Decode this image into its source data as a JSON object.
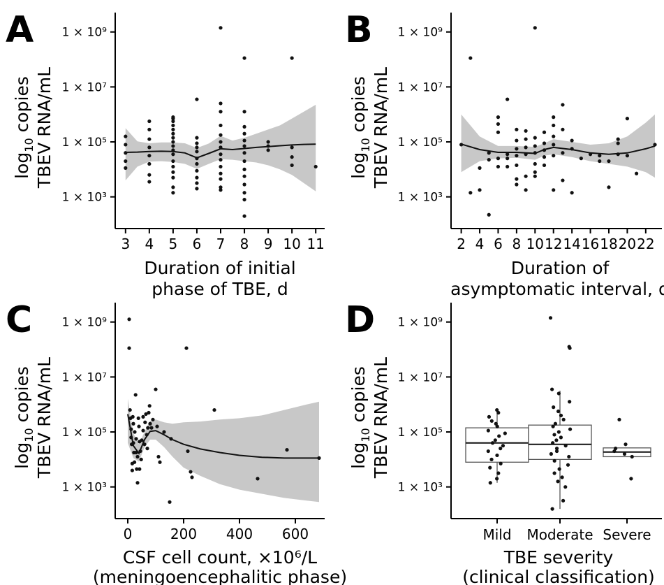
{
  "colors": {
    "points": "#111111",
    "band": "#c8c8c8",
    "line": "#111111",
    "box_stroke": "#555555",
    "background": "#ffffff"
  },
  "ytick_labels": [
    "1 × 10³",
    "1 × 10⁵",
    "1 × 10⁷",
    "1 × 10⁹"
  ],
  "ylabel_line1": "log10 copies",
  "ylabel_line2": "TBEV RNA/mL",
  "chart_data": [
    {
      "panel": "A",
      "type": "scatter",
      "y_scale": "log10",
      "ylim_exp": [
        2.0,
        9.4
      ],
      "yticks_exp": [
        3,
        5,
        7,
        9
      ],
      "xlim": [
        2.8,
        11.2
      ],
      "xticks": [
        3,
        4,
        5,
        6,
        7,
        8,
        9,
        10,
        11
      ],
      "xlabel": [
        "Duration of initial",
        "phase of TBE, d"
      ],
      "ylabel": "log10 copies TBEV RNA/mL",
      "points_x_y_log10": [
        [
          3,
          5.2
        ],
        [
          3,
          4.9
        ],
        [
          3,
          4.6
        ],
        [
          3,
          4.3
        ],
        [
          3,
          4.05
        ],
        [
          4,
          5.75
        ],
        [
          4,
          5.45
        ],
        [
          4,
          5.1
        ],
        [
          4,
          4.8
        ],
        [
          4,
          4.5
        ],
        [
          4,
          4.2
        ],
        [
          4,
          3.8
        ],
        [
          4,
          3.55
        ],
        [
          5,
          5.9
        ],
        [
          5,
          5.85
        ],
        [
          5,
          5.75
        ],
        [
          5,
          5.6
        ],
        [
          5,
          5.45
        ],
        [
          5,
          5.3
        ],
        [
          5,
          5.15
        ],
        [
          5,
          5.0
        ],
        [
          5,
          4.85
        ],
        [
          5,
          4.7
        ],
        [
          5,
          4.55
        ],
        [
          5,
          4.3
        ],
        [
          5,
          4.1
        ],
        [
          5,
          3.9
        ],
        [
          5,
          3.7
        ],
        [
          5,
          3.35
        ],
        [
          5,
          3.15
        ],
        [
          6,
          6.55
        ],
        [
          6,
          5.15
        ],
        [
          6,
          4.95
        ],
        [
          6,
          4.8
        ],
        [
          6,
          4.65
        ],
        [
          6,
          4.4
        ],
        [
          6,
          4.2
        ],
        [
          6,
          3.95
        ],
        [
          6,
          3.7
        ],
        [
          6,
          3.5
        ],
        [
          6,
          3.3
        ],
        [
          7,
          9.15
        ],
        [
          7,
          6.4
        ],
        [
          7,
          6.1
        ],
        [
          7,
          5.6
        ],
        [
          7,
          5.25
        ],
        [
          7,
          5.0
        ],
        [
          7,
          4.8
        ],
        [
          7,
          4.55
        ],
        [
          7,
          4.35
        ],
        [
          7,
          4.1
        ],
        [
          7,
          3.85
        ],
        [
          7,
          3.65
        ],
        [
          7,
          3.35
        ],
        [
          7,
          3.25
        ],
        [
          8,
          8.05
        ],
        [
          8,
          6.1
        ],
        [
          8,
          5.55
        ],
        [
          8,
          5.3
        ],
        [
          8,
          5.05
        ],
        [
          8,
          4.85
        ],
        [
          8,
          4.6
        ],
        [
          8,
          4.3
        ],
        [
          8,
          4.0
        ],
        [
          8,
          3.75
        ],
        [
          8,
          3.45
        ],
        [
          8,
          3.15
        ],
        [
          8,
          2.9
        ],
        [
          8,
          2.3
        ],
        [
          9,
          5.0
        ],
        [
          9,
          4.85
        ],
        [
          9,
          4.7
        ],
        [
          10,
          8.05
        ],
        [
          10,
          4.8
        ],
        [
          10,
          4.45
        ],
        [
          10,
          4.15
        ],
        [
          11,
          4.1
        ]
      ],
      "smooth_x": [
        3,
        3.5,
        4,
        4.5,
        5,
        5.5,
        6,
        6.5,
        7,
        7.5,
        8,
        8.5,
        9,
        9.5,
        10,
        10.5,
        11
      ],
      "smooth_y_log10": [
        4.62,
        4.63,
        4.65,
        4.66,
        4.65,
        4.6,
        4.42,
        4.58,
        4.75,
        4.72,
        4.76,
        4.8,
        4.83,
        4.86,
        4.89,
        4.91,
        4.92
      ],
      "band_lo_log10": [
        3.6,
        4.1,
        4.28,
        4.3,
        4.27,
        4.2,
        4.02,
        4.2,
        4.37,
        4.35,
        4.3,
        4.25,
        4.15,
        4.0,
        3.8,
        3.5,
        3.2
      ],
      "band_hi_log10": [
        5.5,
        5.02,
        4.95,
        4.98,
        4.98,
        4.95,
        4.78,
        4.94,
        5.22,
        5.05,
        5.15,
        5.3,
        5.45,
        5.6,
        5.85,
        6.1,
        6.35
      ]
    },
    {
      "panel": "B",
      "type": "scatter",
      "y_scale": "log10",
      "ylim_exp": [
        2.0,
        9.4
      ],
      "yticks_exp": [
        3,
        5,
        7,
        9
      ],
      "xlim": [
        1.5,
        23.3
      ],
      "xticks": [
        2,
        4,
        6,
        8,
        10,
        12,
        14,
        16,
        18,
        20,
        22
      ],
      "xlabel": [
        "Duration of",
        "asymptomatic interval, d"
      ],
      "ylabel": "log10 copies TBEV RNA/mL",
      "points_x_y_log10": [
        [
          2,
          4.9
        ],
        [
          3,
          8.05
        ],
        [
          3,
          3.15
        ],
        [
          4,
          4.05
        ],
        [
          4,
          3.25
        ],
        [
          5,
          4.6
        ],
        [
          5,
          4.35
        ],
        [
          5,
          2.35
        ],
        [
          6,
          5.9
        ],
        [
          6,
          5.65
        ],
        [
          6,
          5.35
        ],
        [
          6,
          4.4
        ],
        [
          6,
          4.1
        ],
        [
          7,
          6.55
        ],
        [
          7,
          4.55
        ],
        [
          7,
          4.4
        ],
        [
          7,
          4.1
        ],
        [
          8,
          5.45
        ],
        [
          8,
          5.05
        ],
        [
          8,
          4.75
        ],
        [
          8,
          4.5
        ],
        [
          8,
          4.15
        ],
        [
          8,
          3.65
        ],
        [
          8,
          3.45
        ],
        [
          9,
          5.4
        ],
        [
          9,
          5.1
        ],
        [
          9,
          4.8
        ],
        [
          9,
          4.55
        ],
        [
          9,
          3.75
        ],
        [
          9,
          3.25
        ],
        [
          10,
          9.15
        ],
        [
          10,
          5.15
        ],
        [
          10,
          4.85
        ],
        [
          10,
          4.6
        ],
        [
          10,
          4.2
        ],
        [
          10,
          3.9
        ],
        [
          10,
          3.75
        ],
        [
          11,
          5.35
        ],
        [
          11,
          4.95
        ],
        [
          11,
          4.7
        ],
        [
          11,
          4.45
        ],
        [
          11,
          4.15
        ],
        [
          12,
          5.9
        ],
        [
          12,
          5.6
        ],
        [
          12,
          5.2
        ],
        [
          12,
          4.9
        ],
        [
          12,
          4.5
        ],
        [
          12,
          3.25
        ],
        [
          13,
          6.35
        ],
        [
          13,
          5.45
        ],
        [
          13,
          4.6
        ],
        [
          13,
          3.6
        ],
        [
          14,
          5.05
        ],
        [
          14,
          4.75
        ],
        [
          14,
          3.15
        ],
        [
          15,
          4.4
        ],
        [
          16,
          4.55
        ],
        [
          17,
          4.5
        ],
        [
          17,
          4.3
        ],
        [
          18,
          4.3
        ],
        [
          18,
          3.35
        ],
        [
          19,
          5.1
        ],
        [
          19,
          4.95
        ],
        [
          19,
          4.55
        ],
        [
          20,
          5.85
        ],
        [
          20,
          4.5
        ],
        [
          21,
          3.85
        ],
        [
          23,
          4.9
        ]
      ],
      "smooth_x": [
        2,
        4,
        6,
        8,
        10,
        11,
        12,
        14,
        16,
        18,
        20,
        22,
        23
      ],
      "smooth_y_log10": [
        4.92,
        4.72,
        4.62,
        4.62,
        4.58,
        4.72,
        4.8,
        4.72,
        4.6,
        4.55,
        4.6,
        4.75,
        4.85
      ],
      "band_lo_log10": [
        3.9,
        4.3,
        4.4,
        4.42,
        4.35,
        4.5,
        4.55,
        4.45,
        4.3,
        4.2,
        4.1,
        3.9,
        3.7
      ],
      "band_hi_log10": [
        6.0,
        5.2,
        4.85,
        4.85,
        4.82,
        4.95,
        5.1,
        5.0,
        4.9,
        4.95,
        5.2,
        5.7,
        6.0
      ]
    },
    {
      "panel": "C",
      "type": "scatter",
      "y_scale": "log10",
      "ylim_exp": [
        2.0,
        9.4
      ],
      "yticks_exp": [
        3,
        5,
        7,
        9
      ],
      "xlim": [
        -25,
        690
      ],
      "xticks": [
        0,
        200,
        400,
        600
      ],
      "xlabel": [
        "CSF cell count, ×10⁶/L",
        "(meningoencephalitic phase)"
      ],
      "ylabel": "log10 copies TBEV RNA/mL",
      "points_x_y_log10": [
        [
          5,
          9.1
        ],
        [
          5,
          8.05
        ],
        [
          8,
          5.8
        ],
        [
          10,
          5.5
        ],
        [
          12,
          5.1
        ],
        [
          12,
          4.8
        ],
        [
          14,
          4.55
        ],
        [
          16,
          3.85
        ],
        [
          16,
          3.6
        ],
        [
          18,
          5.55
        ],
        [
          20,
          5.3
        ],
        [
          20,
          4.6
        ],
        [
          22,
          4.25
        ],
        [
          24,
          3.9
        ],
        [
          25,
          5.0
        ],
        [
          28,
          6.35
        ],
        [
          30,
          4.75
        ],
        [
          30,
          4.25
        ],
        [
          32,
          3.65
        ],
        [
          35,
          3.15
        ],
        [
          35,
          4.1
        ],
        [
          38,
          5.5
        ],
        [
          40,
          5.2
        ],
        [
          42,
          4.65
        ],
        [
          42,
          3.65
        ],
        [
          45,
          4.3
        ],
        [
          48,
          4.0
        ],
        [
          50,
          4.7
        ],
        [
          55,
          5.55
        ],
        [
          55,
          5.05
        ],
        [
          60,
          4.55
        ],
        [
          62,
          5.35
        ],
        [
          65,
          5.65
        ],
        [
          68,
          4.9
        ],
        [
          70,
          4.4
        ],
        [
          72,
          5.15
        ],
        [
          75,
          5.7
        ],
        [
          78,
          5.95
        ],
        [
          80,
          5.3
        ],
        [
          85,
          5.15
        ],
        [
          90,
          5.45
        ],
        [
          100,
          6.55
        ],
        [
          105,
          5.2
        ],
        [
          110,
          4.1
        ],
        [
          115,
          3.9
        ],
        [
          130,
          5.0
        ],
        [
          150,
          2.45
        ],
        [
          155,
          4.75
        ],
        [
          210,
          8.05
        ],
        [
          215,
          4.3
        ],
        [
          225,
          3.55
        ],
        [
          230,
          3.35
        ],
        [
          310,
          5.8
        ],
        [
          465,
          3.3
        ],
        [
          570,
          4.35
        ],
        [
          685,
          4.05
        ]
      ],
      "smooth_x": [
        0,
        20,
        40,
        60,
        80,
        100,
        130,
        160,
        200,
        260,
        330,
        400,
        480,
        560,
        640,
        685
      ],
      "smooth_y_log10": [
        5.65,
        4.5,
        4.22,
        4.72,
        5.02,
        5.05,
        4.9,
        4.72,
        4.55,
        4.38,
        4.25,
        4.15,
        4.08,
        4.05,
        4.05,
        4.05
      ],
      "band_lo_log10": [
        4.6,
        4.05,
        3.92,
        4.45,
        4.72,
        4.72,
        4.45,
        4.1,
        3.7,
        3.4,
        3.1,
        2.9,
        2.75,
        2.6,
        2.5,
        2.45
      ],
      "band_hi_log10": [
        6.2,
        4.95,
        4.55,
        5.0,
        5.4,
        5.45,
        5.35,
        5.3,
        5.35,
        5.38,
        5.45,
        5.5,
        5.6,
        5.8,
        6.0,
        6.1
      ]
    },
    {
      "panel": "D",
      "type": "box",
      "y_scale": "log10",
      "ylim_exp": [
        2.0,
        9.4
      ],
      "yticks_exp": [
        3,
        5,
        7,
        9
      ],
      "categories": [
        "Mild",
        "Moderate",
        "Severe"
      ],
      "xlabel": [
        "TBE severity",
        "(clinical classification)"
      ],
      "ylabel": "log10 copies TBEV RNA/mL",
      "boxes_log10": [
        {
          "name": "Mild",
          "q1": 3.9,
          "median": 4.6,
          "q3": 5.15,
          "whisker_lo": 3.15,
          "whisker_hi": 5.85
        },
        {
          "name": "Moderate",
          "q1": 4.0,
          "median": 4.55,
          "q3": 5.25,
          "whisker_lo": 2.2,
          "whisker_hi": 6.5
        },
        {
          "name": "Severe",
          "q1": 4.1,
          "median": 4.27,
          "q3": 4.42,
          "whisker_lo": 4.1,
          "whisker_hi": 4.42
        }
      ],
      "points_cat_y_log10": [
        [
          "Mild",
          5.8
        ],
        [
          "Mild",
          5.7
        ],
        [
          "Mild",
          5.55
        ],
        [
          "Mild",
          5.4
        ],
        [
          "Mild",
          5.3
        ],
        [
          "Mild",
          5.2
        ],
        [
          "Mild",
          5.05
        ],
        [
          "Mild",
          4.95
        ],
        [
          "Mild",
          4.85
        ],
        [
          "Mild",
          4.7
        ],
        [
          "Mild",
          4.6
        ],
        [
          "Mild",
          4.5
        ],
        [
          "Mild",
          4.4
        ],
        [
          "Mild",
          4.3
        ],
        [
          "Mild",
          4.15
        ],
        [
          "Mild",
          4.0
        ],
        [
          "Mild",
          3.85
        ],
        [
          "Mild",
          3.7
        ],
        [
          "Mild",
          3.5
        ],
        [
          "Mild",
          3.3
        ],
        [
          "Mild",
          3.15
        ],
        [
          "Moderate",
          9.15
        ],
        [
          "Moderate",
          8.1
        ],
        [
          "Moderate",
          8.05
        ],
        [
          "Moderate",
          6.55
        ],
        [
          "Moderate",
          6.4
        ],
        [
          "Moderate",
          6.1
        ],
        [
          "Moderate",
          5.9
        ],
        [
          "Moderate",
          5.75
        ],
        [
          "Moderate",
          5.6
        ],
        [
          "Moderate",
          5.45
        ],
        [
          "Moderate",
          5.3
        ],
        [
          "Moderate",
          5.2
        ],
        [
          "Moderate",
          5.1
        ],
        [
          "Moderate",
          5.0
        ],
        [
          "Moderate",
          4.9
        ],
        [
          "Moderate",
          4.8
        ],
        [
          "Moderate",
          4.7
        ],
        [
          "Moderate",
          4.6
        ],
        [
          "Moderate",
          4.5
        ],
        [
          "Moderate",
          4.4
        ],
        [
          "Moderate",
          4.3
        ],
        [
          "Moderate",
          4.2
        ],
        [
          "Moderate",
          4.1
        ],
        [
          "Moderate",
          3.95
        ],
        [
          "Moderate",
          3.8
        ],
        [
          "Moderate",
          3.65
        ],
        [
          "Moderate",
          3.5
        ],
        [
          "Moderate",
          3.35
        ],
        [
          "Moderate",
          3.2
        ],
        [
          "Moderate",
          3.0
        ],
        [
          "Moderate",
          2.5
        ],
        [
          "Moderate",
          2.2
        ],
        [
          "Severe",
          5.45
        ],
        [
          "Severe",
          4.55
        ],
        [
          "Severe",
          4.4
        ],
        [
          "Severe",
          4.3
        ],
        [
          "Severe",
          4.2
        ],
        [
          "Severe",
          4.1
        ],
        [
          "Severe",
          3.3
        ]
      ]
    }
  ]
}
